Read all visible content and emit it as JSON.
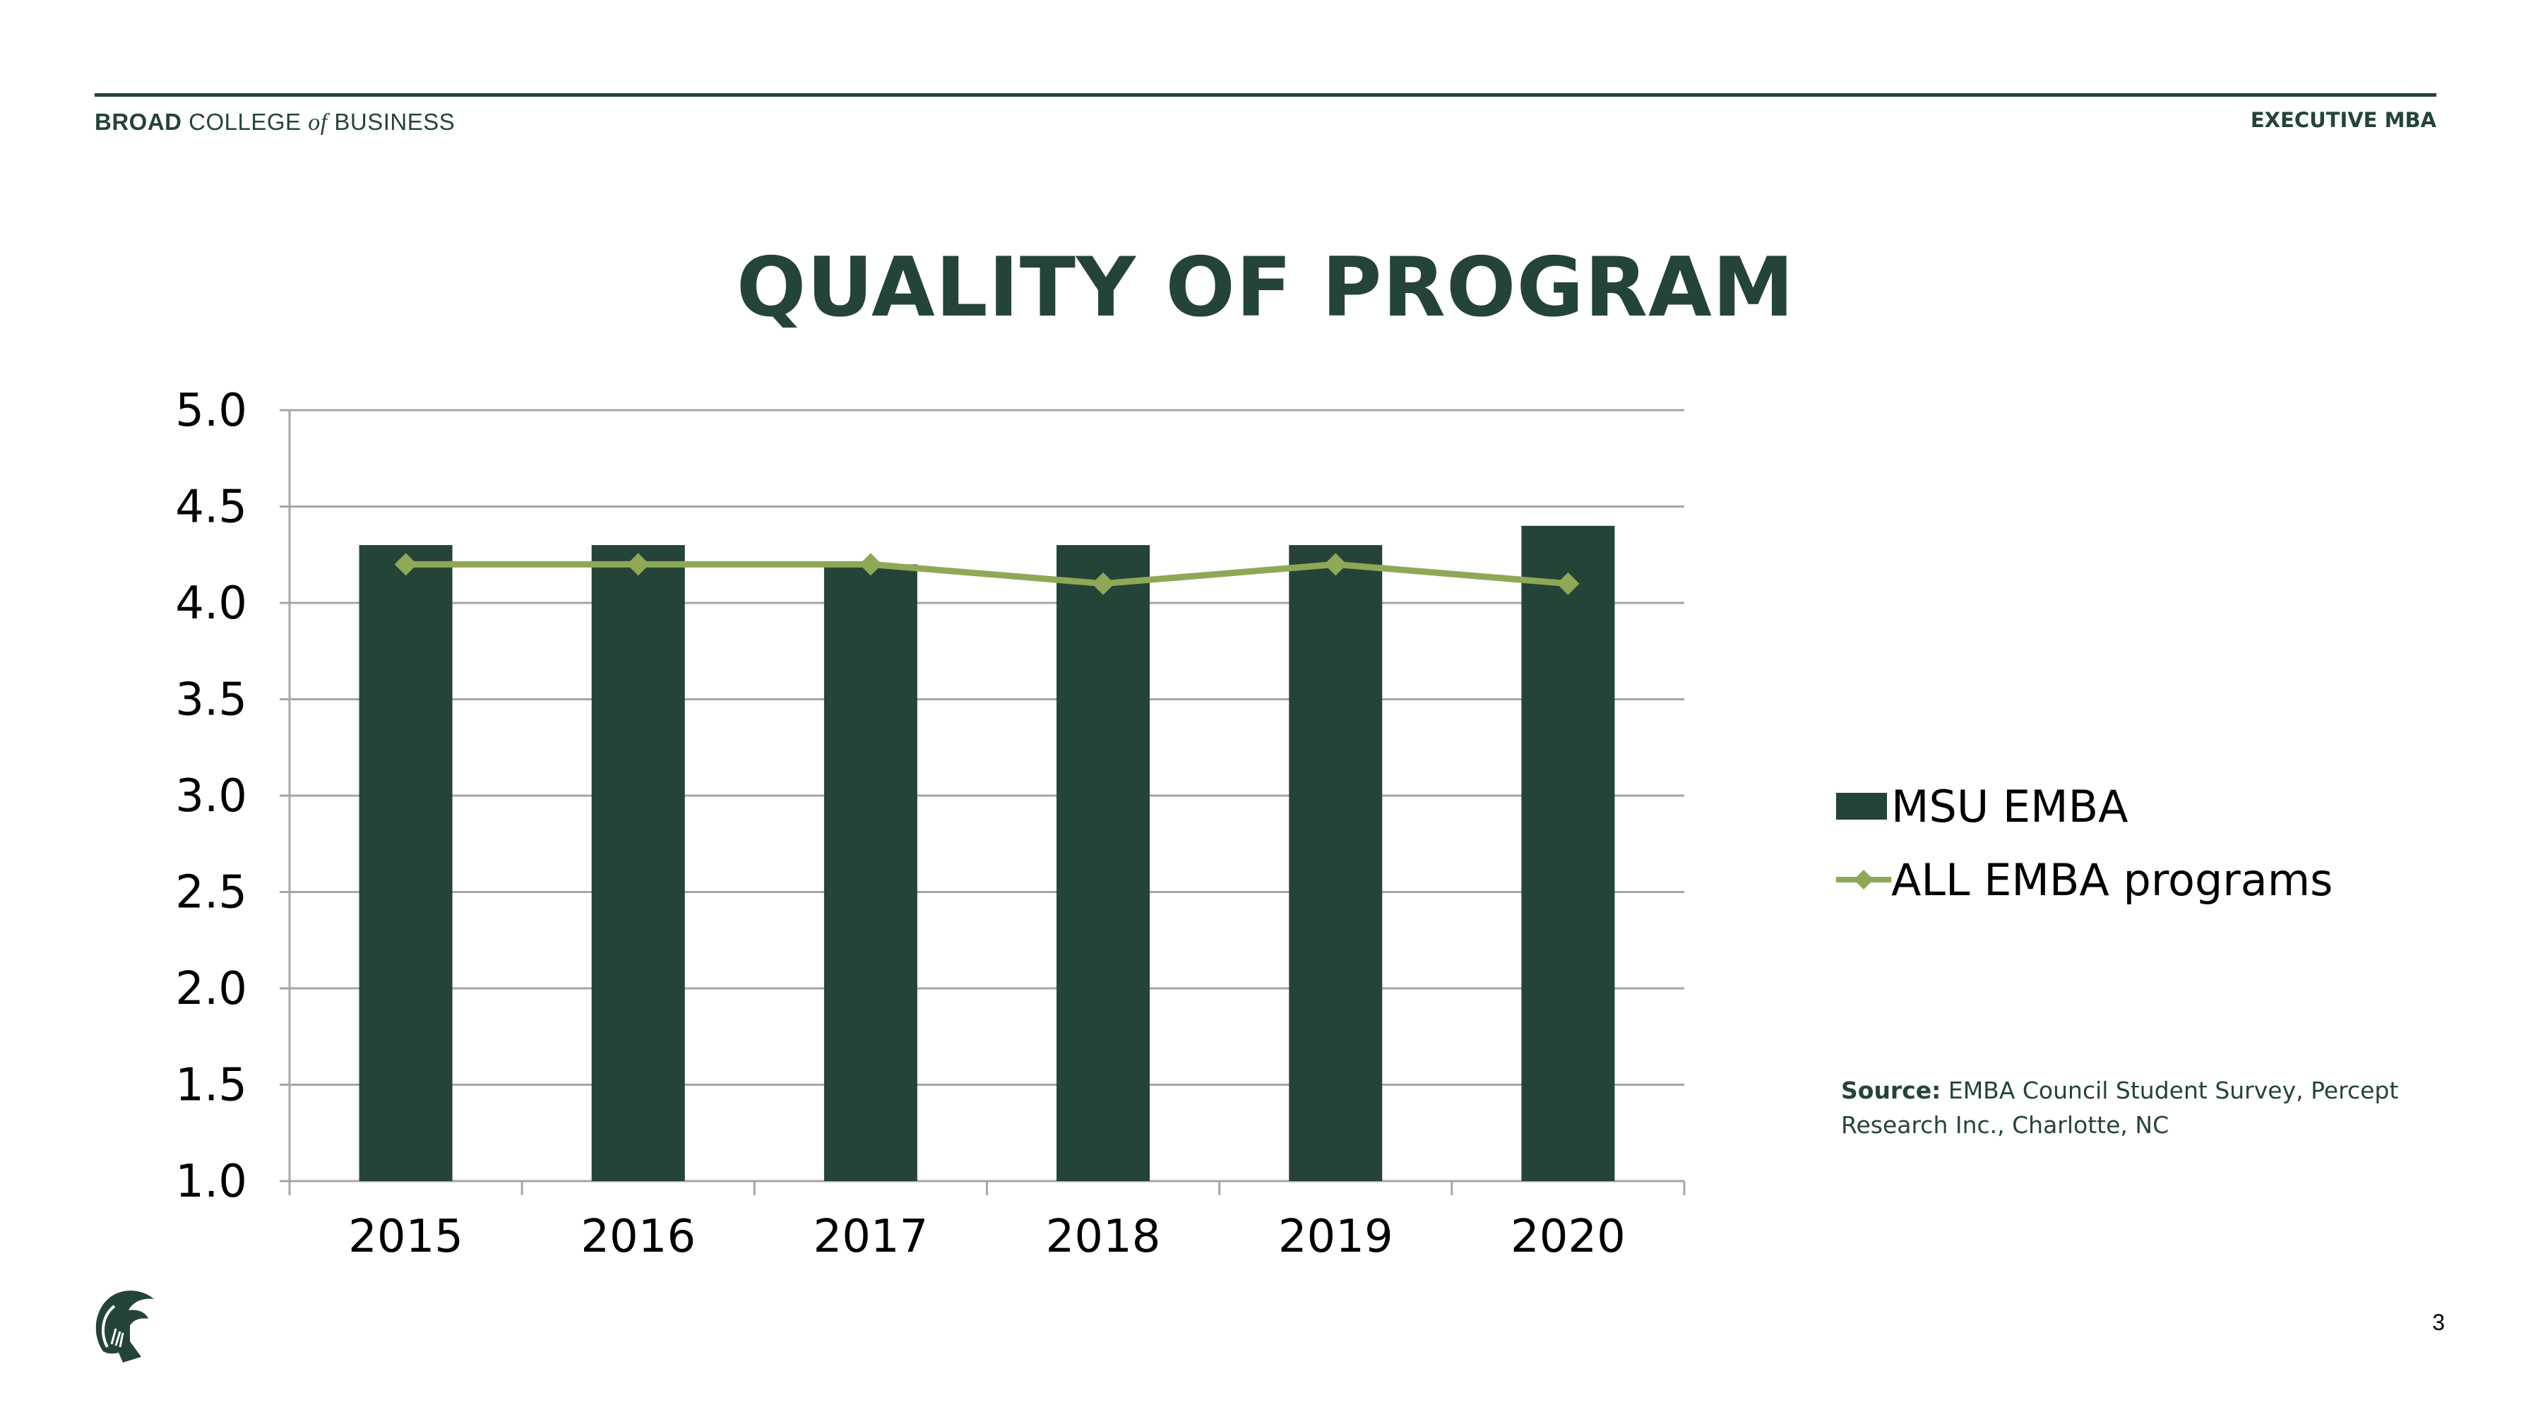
{
  "header": {
    "brand_broad": "BROAD",
    "brand_college": "COLLEGE",
    "brand_of": "of",
    "brand_business": "BUSINESS",
    "program": "EXECUTIVE MBA"
  },
  "slide": {
    "title": "QUALITY OF PROGRAM",
    "page_number": "3"
  },
  "source": {
    "label": "Source:",
    "text": "EMBA Council Student Survey, Percept Research Inc., Charlotte, NC"
  },
  "colors": {
    "brand_green": "#244438",
    "bar": "#244438",
    "line": "#8FA857",
    "grid": "#A6A6A6"
  },
  "logo_icon": "spartan-helmet-icon",
  "chart_data": {
    "type": "bar",
    "categories": [
      "2015",
      "2016",
      "2017",
      "2018",
      "2019",
      "2020"
    ],
    "series": [
      {
        "name": "MSU EMBA",
        "type": "bar",
        "values": [
          4.3,
          4.3,
          4.2,
          4.3,
          4.3,
          4.4
        ]
      },
      {
        "name": "ALL EMBA programs",
        "type": "line",
        "marker": "diamond",
        "values": [
          4.2,
          4.2,
          4.2,
          4.1,
          4.2,
          4.1
        ]
      }
    ],
    "y_ticks": [
      "1.0",
      "1.5",
      "2.0",
      "2.5",
      "3.0",
      "3.5",
      "4.0",
      "4.5",
      "5.0"
    ],
    "ylim": [
      1.0,
      5.0
    ],
    "grid": true,
    "legend_position": "right"
  }
}
